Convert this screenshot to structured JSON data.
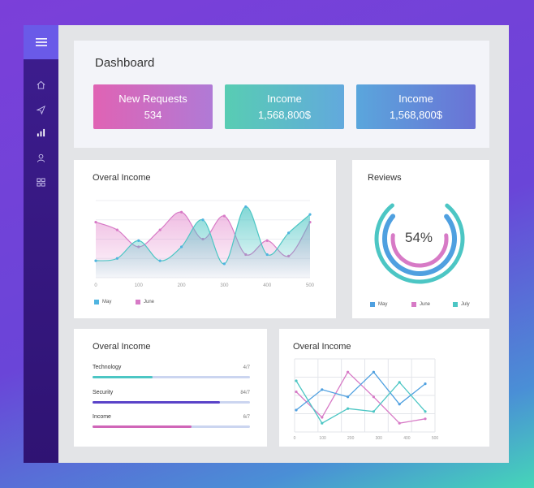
{
  "header": {
    "title": "Dashboard",
    "stats": [
      {
        "label": "New Requests",
        "value": "534",
        "from": "#e063b4",
        "to": "#b07ad6"
      },
      {
        "label": "Income",
        "value": "1,568,800$",
        "from": "#58cdb3",
        "to": "#62a9dd"
      },
      {
        "label": "Income",
        "value": "1,568,800$",
        "from": "#5aa6dc",
        "to": "#6a72d6"
      }
    ]
  },
  "area_card": {
    "title": "Overal Income",
    "x_ticks": [
      "0",
      "100",
      "200",
      "300",
      "400",
      "500"
    ],
    "legend": [
      {
        "name": "May",
        "color": "#4fb4e0"
      },
      {
        "name": "June",
        "color": "#d77ac6"
      }
    ]
  },
  "reviews": {
    "title": "Reviews",
    "center_text": "54%",
    "legend": [
      {
        "name": "May",
        "color": "#4fa0e0"
      },
      {
        "name": "June",
        "color": "#d77ac6"
      },
      {
        "name": "July",
        "color": "#4cc6c4"
      }
    ],
    "rings": [
      {
        "name": "July",
        "color": "#4cc6c4",
        "fraction": 0.78
      },
      {
        "name": "May",
        "color": "#4fa0e0",
        "fraction": 0.72
      },
      {
        "name": "June",
        "color": "#d77ac6",
        "fraction": 0.54
      }
    ]
  },
  "progress_card": {
    "title": "Overal Income",
    "items": [
      {
        "label": "Technology",
        "value": "4/7",
        "fraction": 0.38,
        "color": "#4cc6c4"
      },
      {
        "label": "Security",
        "value": "84/7",
        "fraction": 0.81,
        "color": "#5a43c8"
      },
      {
        "label": "Income",
        "value": "6/7",
        "fraction": 0.63,
        "color": "#d066b8"
      }
    ]
  },
  "line_card": {
    "title": "Overal Income",
    "x_ticks": [
      "0",
      "100",
      "200",
      "300",
      "400",
      "500"
    ]
  },
  "chart_data": [
    {
      "type": "area",
      "title": "Overal Income",
      "x": [
        0,
        50,
        100,
        150,
        200,
        250,
        300,
        350,
        400,
        450,
        500
      ],
      "ylim": [
        0,
        100
      ],
      "series": [
        {
          "name": "May",
          "values": [
            22,
            25,
            48,
            22,
            40,
            75,
            18,
            92,
            30,
            58,
            82
          ]
        },
        {
          "name": "June",
          "values": [
            72,
            62,
            40,
            62,
            85,
            50,
            80,
            30,
            48,
            28,
            72
          ]
        }
      ]
    },
    {
      "type": "pie",
      "title": "Reviews",
      "categories": [
        "May",
        "June",
        "July"
      ],
      "values": [
        72,
        54,
        78
      ]
    },
    {
      "type": "line",
      "title": "Overal Income",
      "x": [
        0,
        100,
        200,
        300,
        400,
        500
      ],
      "ylim": [
        0,
        100
      ],
      "series": [
        {
          "name": "pink",
          "values": [
            55,
            20,
            82,
            48,
            12,
            18
          ]
        },
        {
          "name": "blue",
          "values": [
            30,
            58,
            48,
            82,
            38,
            66
          ]
        },
        {
          "name": "teal",
          "values": [
            70,
            12,
            32,
            28,
            68,
            28
          ]
        }
      ]
    }
  ]
}
